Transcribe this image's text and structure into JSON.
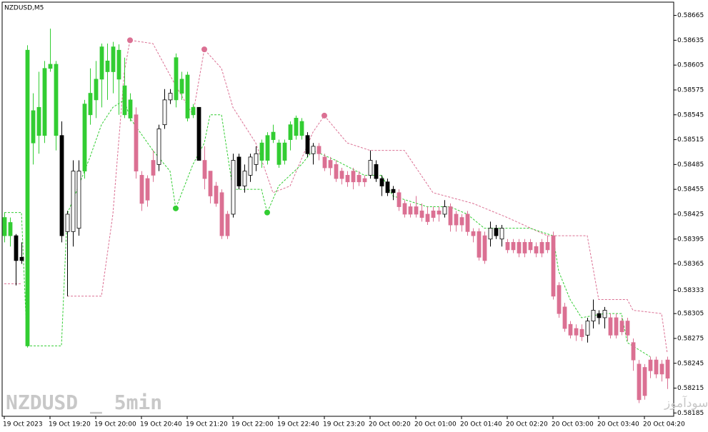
{
  "chart_data": {
    "type": "candlestick",
    "title": "NZDUSD,M5",
    "watermark": "NZDUSD _ 5min",
    "site_text": "انتشار در سایت سودآموز",
    "categories": [
      "19 Oct 2023",
      null,
      null,
      null,
      null,
      null,
      null,
      null,
      "19 Oct 19:20",
      null,
      null,
      null,
      null,
      null,
      null,
      null,
      "19 Oct 20:00",
      null,
      null,
      null,
      null,
      null,
      null,
      null,
      "19 Oct 20:40",
      null,
      null,
      null,
      null,
      null,
      null,
      null,
      "19 Oct 21:20",
      null,
      null,
      null,
      null,
      null,
      null,
      null,
      "19 Oct 22:00",
      null,
      null,
      null,
      null,
      null,
      null,
      null,
      "19 Oct 22:40",
      null,
      null,
      null,
      null,
      null,
      null,
      null,
      "19 Oct 23:20",
      null,
      null,
      null,
      null,
      null,
      null,
      null,
      "20 Oct 00:20",
      null,
      null,
      null,
      null,
      null,
      null,
      null,
      "20 Oct 01:00",
      null,
      null,
      null,
      null,
      null,
      null,
      null,
      "20 Oct 01:40",
      null,
      null,
      null,
      null,
      null,
      null,
      null,
      "20 Oct 02:20",
      null,
      null,
      null,
      null,
      null,
      null,
      null,
      "20 Oct 03:00",
      null,
      null,
      null,
      null,
      null,
      null,
      null,
      "20 Oct 03:40",
      null,
      null,
      null,
      null,
      null,
      null,
      null,
      "20 Oct 04:20",
      null,
      null,
      null,
      null
    ],
    "open": [
      0.58399,
      0.58399,
      0.58399,
      0.58369,
      0.58266,
      0.58511,
      0.5852,
      0.5852,
      0.58601,
      0.5852,
      0.5852,
      0.58404,
      0.58404,
      0.58408,
      0.58477,
      0.58545,
      0.58563,
      0.58588,
      0.58597,
      0.58597,
      0.58588,
      0.58545,
      0.58541,
      0.58545,
      0.58472,
      0.58468,
      0.5849,
      0.58485,
      0.58533,
      0.58563,
      0.58563,
      0.58571,
      0.58541,
      0.58545,
      0.58554,
      0.5849,
      0.58477,
      0.58459,
      0.58451,
      0.58425,
      0.58425,
      0.58494,
      0.58459,
      0.58472,
      0.58485,
      0.5849,
      0.5849,
      0.58515,
      0.58485,
      0.5849,
      0.58515,
      0.5852,
      0.5852,
      0.5852,
      0.58498,
      0.58507,
      0.58494,
      0.5849,
      0.58485,
      0.58477,
      0.58472,
      0.58477,
      0.58472,
      0.58468,
      0.58472,
      0.58485,
      0.58468,
      0.58464,
      0.58455,
      0.58451,
      0.58438,
      0.58434,
      0.58434,
      0.58429,
      0.58425,
      0.58429,
      0.58429,
      0.58425,
      0.58434,
      0.58425,
      0.58421,
      0.58425,
      0.58404,
      0.58404,
      0.58399,
      0.58395,
      0.58408,
      0.58395,
      0.58391,
      0.58391,
      0.58391,
      0.58391,
      0.58391,
      0.58386,
      0.58391,
      0.58391,
      0.58399,
      0.58339,
      0.58313,
      0.58292,
      0.58287,
      0.58286,
      0.58279,
      0.58296,
      0.58305,
      0.583,
      0.583,
      0.583,
      0.58296,
      0.58296,
      0.5827,
      0.58244,
      0.5824,
      0.58249,
      0.58249,
      0.58244,
      0.58249
    ],
    "high": [
      0.58427,
      0.58421,
      0.58401,
      0.58391,
      0.58629,
      0.58571,
      0.58597,
      0.5861,
      0.58649,
      0.5861,
      0.58537,
      0.58429,
      0.5849,
      0.5849,
      0.58563,
      0.58601,
      0.5861,
      0.58631,
      0.58631,
      0.58633,
      0.5863,
      0.58614,
      0.58571,
      0.58554,
      0.58477,
      0.58472,
      0.58502,
      0.58533,
      0.58576,
      0.58576,
      0.58619,
      0.58597,
      0.58597,
      0.58558,
      0.58554,
      0.58507,
      0.58477,
      0.58464,
      0.58455,
      0.58429,
      0.58498,
      0.58498,
      0.58485,
      0.58498,
      0.58507,
      0.58515,
      0.58524,
      0.58533,
      0.58515,
      0.58515,
      0.58537,
      0.58544,
      0.58541,
      0.58524,
      0.58511,
      0.58511,
      0.58498,
      0.58494,
      0.5849,
      0.58481,
      0.58477,
      0.58481,
      0.58477,
      0.58472,
      0.58502,
      0.5849,
      0.58472,
      0.58468,
      0.58459,
      0.58455,
      0.58442,
      0.58438,
      0.58447,
      0.58438,
      0.58434,
      0.58434,
      0.58434,
      0.58442,
      0.58438,
      0.58429,
      0.58425,
      0.58429,
      0.58408,
      0.58408,
      0.58404,
      0.58416,
      0.58412,
      0.58412,
      0.58395,
      0.58395,
      0.58395,
      0.58395,
      0.58395,
      0.58391,
      0.58395,
      0.58399,
      0.58404,
      0.58343,
      0.58318,
      0.58296,
      0.58292,
      0.58292,
      0.583,
      0.58322,
      0.58309,
      0.58313,
      0.58305,
      0.58305,
      0.583,
      0.583,
      0.58275,
      0.58249,
      0.58244,
      0.58253,
      0.58253,
      0.58249,
      0.58253
    ],
    "low": [
      0.58391,
      0.58386,
      0.58339,
      0.58365,
      0.58264,
      0.58485,
      0.58498,
      0.58511,
      0.58597,
      0.58502,
      0.58391,
      0.58326,
      0.58386,
      0.58399,
      0.58468,
      0.58533,
      0.58541,
      0.58554,
      0.58563,
      0.58571,
      0.58545,
      0.58541,
      0.58537,
      0.58468,
      0.58429,
      0.58434,
      0.58464,
      0.58477,
      0.58528,
      0.58558,
      0.58554,
      0.58563,
      0.58537,
      0.58541,
      0.5849,
      0.58455,
      0.58438,
      0.58434,
      0.58395,
      0.58395,
      0.58421,
      0.58455,
      0.58451,
      0.58464,
      0.58477,
      0.58481,
      0.58485,
      0.58511,
      0.58481,
      0.58485,
      0.58502,
      0.58515,
      0.58515,
      0.58494,
      0.58485,
      0.5849,
      0.58477,
      0.58472,
      0.58464,
      0.58461,
      0.58458,
      0.58455,
      0.58459,
      0.58458,
      0.58468,
      0.58464,
      0.58447,
      0.58447,
      0.58442,
      0.58429,
      0.58421,
      0.58421,
      0.58421,
      0.58416,
      0.58412,
      0.58416,
      0.58416,
      0.58421,
      0.58404,
      0.58404,
      0.58404,
      0.58399,
      0.58391,
      0.58369,
      0.58365,
      0.58386,
      0.58395,
      0.58386,
      0.58378,
      0.58378,
      0.58373,
      0.58373,
      0.58378,
      0.58373,
      0.58373,
      0.58378,
      0.58322,
      0.583,
      0.58283,
      0.58275,
      0.58272,
      0.58272,
      0.5827,
      0.58287,
      0.58292,
      0.58287,
      0.58275,
      0.58275,
      0.58279,
      0.58272,
      0.58236,
      0.58197,
      0.58201,
      0.58227,
      0.58227,
      0.58223,
      0.58214
    ],
    "close": [
      0.58421,
      0.58415,
      0.58369,
      0.58373,
      0.58623,
      0.5855,
      0.58554,
      0.58601,
      0.58606,
      0.58606,
      0.58399,
      0.58425,
      0.58477,
      0.58477,
      0.58558,
      0.58571,
      0.58588,
      0.58627,
      0.5861,
      0.58627,
      0.58623,
      0.5858,
      0.58563,
      0.58477,
      0.58438,
      0.58442,
      0.58472,
      0.58528,
      0.58563,
      0.58571,
      0.58614,
      0.58588,
      0.58593,
      0.58554,
      0.5849,
      0.58468,
      0.58447,
      0.58438,
      0.58399,
      0.58399,
      0.5849,
      0.58459,
      0.58477,
      0.58494,
      0.58498,
      0.58511,
      0.5852,
      0.58524,
      0.58511,
      0.58511,
      0.58533,
      0.58541,
      0.58537,
      0.58498,
      0.58507,
      0.58498,
      0.58481,
      0.58481,
      0.58468,
      0.58468,
      0.58464,
      0.58464,
      0.58464,
      0.58464,
      0.5849,
      0.58468,
      0.58459,
      0.58451,
      0.58451,
      0.58434,
      0.58425,
      0.58425,
      0.58425,
      0.58421,
      0.58416,
      0.58421,
      0.58425,
      0.58434,
      0.58412,
      0.58412,
      0.58412,
      0.58404,
      0.58399,
      0.58373,
      0.58369,
      0.58408,
      0.58399,
      0.58408,
      0.58382,
      0.58382,
      0.58378,
      0.58378,
      0.58382,
      0.58378,
      0.58378,
      0.58382,
      0.58326,
      0.58305,
      0.58287,
      0.58279,
      0.58279,
      0.58277,
      0.58296,
      0.58309,
      0.583,
      0.58309,
      0.58279,
      0.58279,
      0.58283,
      0.58279,
      0.58249,
      0.58201,
      0.58206,
      0.58236,
      0.58232,
      0.58232,
      0.58227
    ],
    "colors": [
      "#32cd32",
      "#32cd32",
      "#000000",
      "#000000",
      "#32cd32",
      "#32cd32",
      "#32cd32",
      "#32cd32",
      "#32cd32",
      "#32cd32",
      "#000000",
      "#ffffff",
      "#ffffff",
      "#ffffff",
      "#32cd32",
      "#32cd32",
      "#32cd32",
      "#32cd32",
      "#32cd32",
      "#32cd32",
      "#32cd32",
      "#32cd32",
      "#32cd32",
      "#db7093",
      "#db7093",
      "#db7093",
      "#db7093",
      "#ffffff",
      "#ffffff",
      "#ffffff",
      "#32cd32",
      "#32cd32",
      "#32cd32",
      "#32cd32",
      "#000000",
      "#db7093",
      "#db7093",
      "#db7093",
      "#db7093",
      "#db7093",
      "#ffffff",
      "#000000",
      "#ffffff",
      "#ffffff",
      "#ffffff",
      "#32cd32",
      "#32cd32",
      "#32cd32",
      "#32cd32",
      "#32cd32",
      "#32cd32",
      "#32cd32",
      "#32cd32",
      "#000000",
      "#ffffff",
      "#db7093",
      "#db7093",
      "#db7093",
      "#db7093",
      "#db7093",
      "#db7093",
      "#db7093",
      "#db7093",
      "#db7093",
      "#ffffff",
      "#000000",
      "#000000",
      "#000000",
      "#000000",
      "#db7093",
      "#db7093",
      "#db7093",
      "#db7093",
      "#db7093",
      "#db7093",
      "#db7093",
      "#db7093",
      "#ffffff",
      "#db7093",
      "#db7093",
      "#db7093",
      "#db7093",
      "#db7093",
      "#db7093",
      "#db7093",
      "#ffffff",
      "#000000",
      "#ffffff",
      "#db7093",
      "#db7093",
      "#db7093",
      "#db7093",
      "#db7093",
      "#db7093",
      "#db7093",
      "#db7093",
      "#db7093",
      "#db7093",
      "#db7093",
      "#db7093",
      "#db7093",
      "#db7093",
      "#ffffff",
      "#ffffff",
      "#000000",
      "#ffffff",
      "#db7093",
      "#db7093",
      "#db7093",
      "#db7093",
      "#db7093",
      "#db7093",
      "#db7093",
      "#db7093",
      "#db7093",
      "#db7093",
      "#db7093"
    ],
    "lines": [
      {
        "color": "#db7093",
        "x": [
          0,
          3,
          3,
          11,
          17,
          19,
          21,
          22,
          26,
          30,
          33,
          35,
          38,
          40,
          44,
          47,
          50,
          54,
          56,
          60,
          64,
          70,
          75,
          82,
          88,
          95,
          102,
          104,
          109,
          110,
          115,
          116
        ],
        "values": [
          0.58341,
          0.58341,
          null,
          0.58326,
          0.58326,
          0.58425,
          0.58597,
          0.58635,
          0.58631,
          0.5858,
          0.58545,
          0.58624,
          0.58601,
          0.58554,
          0.58511,
          0.58451,
          0.58459,
          0.58524,
          0.58544,
          0.58511,
          0.58502,
          0.58502,
          0.58451,
          0.58438,
          0.58421,
          0.58399,
          0.58399,
          0.58322,
          0.58322,
          0.58309,
          0.58305,
          0.58257
        ]
      },
      {
        "color": "#32cd32",
        "x": [
          0,
          3,
          4,
          10,
          11,
          13,
          15,
          17,
          19,
          21,
          22,
          26,
          29,
          30,
          33,
          35,
          36,
          38,
          40,
          45,
          46,
          48,
          52,
          54,
          58,
          63,
          66,
          68,
          74,
          78,
          81,
          84,
          92,
          96,
          97,
          99,
          101,
          105,
          108,
          109,
          113
        ],
        "values": [
          0.58427,
          0.58427,
          0.58266,
          0.58266,
          0.58425,
          0.58459,
          0.58494,
          0.58533,
          0.58554,
          0.58563,
          0.58541,
          0.58502,
          0.58477,
          0.58432,
          0.58485,
          0.58511,
          0.58545,
          0.58545,
          0.58455,
          0.58455,
          0.58427,
          0.58459,
          0.58485,
          0.58502,
          0.5849,
          0.58472,
          0.58472,
          0.58447,
          0.58434,
          0.58434,
          0.58425,
          0.58408,
          0.58408,
          0.58399,
          0.58356,
          0.58322,
          0.583,
          0.58305,
          0.58305,
          0.5827,
          0.58253
        ]
      }
    ],
    "dots": [
      {
        "color": "#db7093",
        "x": [
          22,
          35,
          56
        ],
        "values": [
          0.58635,
          0.58624,
          0.58544
        ]
      },
      {
        "color": "#32cd32",
        "x": [
          30,
          46
        ],
        "values": [
          0.58432,
          0.58427
        ]
      }
    ],
    "ylim": [
      0.58181,
      0.58681
    ],
    "yticks": [
      0.58665,
      0.58635,
      0.58605,
      0.58575,
      0.58545,
      0.58515,
      0.58485,
      0.58455,
      0.58425,
      0.58395,
      0.58365,
      0.58333,
      0.58305,
      0.58275,
      0.58245,
      0.58215,
      0.58185
    ]
  }
}
